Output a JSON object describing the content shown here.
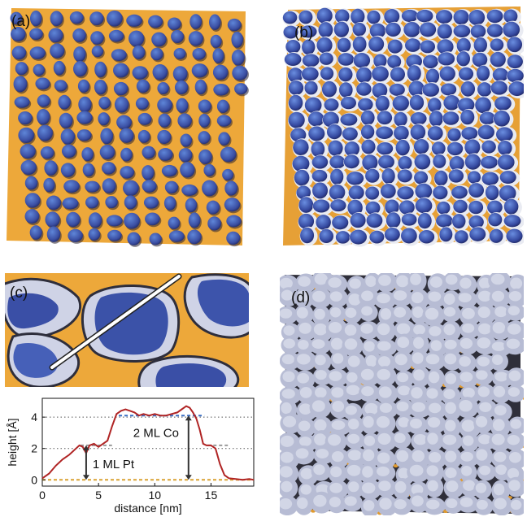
{
  "figure": {
    "panel_labels": {
      "a": "(a)",
      "b": "(b)",
      "c": "(c)",
      "d": "(d)"
    }
  },
  "chart_data": {
    "type": "line",
    "xlabel": "distance [nm]",
    "ylabel": "height [Å]",
    "xlim": [
      0,
      18.8
    ],
    "ylim": [
      -0.4,
      5.2
    ],
    "xticks": [
      0,
      5,
      10,
      15
    ],
    "yticks": [
      0,
      2,
      4
    ],
    "grid": "dotted horizontal at 2 and 4",
    "reference_lines": [
      {
        "y": 0.0,
        "color": "#d9a132",
        "x_range": [
          0,
          18.8
        ]
      },
      {
        "y": 2.2,
        "color": "#999999",
        "x_range": [
          3.4,
          6.2
        ]
      },
      {
        "y": 2.2,
        "color": "#999999",
        "x_range": [
          14.7,
          16.5
        ]
      },
      {
        "y": 4.1,
        "color": "#3a6fc4",
        "x_range": [
          6.8,
          14.4
        ]
      }
    ],
    "series": [
      {
        "color": "#b02424",
        "x": [
          0,
          0.6,
          1.2,
          1.8,
          2.4,
          3.0,
          3.3,
          3.6,
          3.9,
          4.2,
          4.6,
          5.0,
          5.4,
          5.8,
          6.2,
          6.6,
          7.0,
          7.4,
          7.8,
          8.2,
          8.6,
          9.0,
          9.5,
          10.0,
          10.5,
          11.0,
          11.5,
          12.0,
          12.4,
          12.8,
          13.1,
          13.4,
          13.7,
          14.0,
          14.3,
          14.6,
          15.0,
          15.4,
          15.8,
          16.2,
          16.6,
          17.2,
          17.8,
          18.4,
          18.8
        ],
        "y": [
          0.1,
          0.4,
          0.9,
          1.3,
          1.6,
          2.0,
          2.2,
          2.1,
          1.7,
          2.2,
          2.3,
          2.1,
          2.3,
          2.5,
          3.4,
          4.2,
          4.4,
          4.5,
          4.4,
          4.3,
          4.1,
          4.2,
          4.1,
          4.2,
          4.1,
          4.1,
          4.2,
          4.3,
          4.5,
          4.7,
          4.6,
          4.3,
          3.9,
          3.2,
          2.3,
          2.2,
          2.2,
          2.0,
          1.0,
          0.3,
          0.1,
          0.05,
          0.0,
          0.05,
          0.0
        ]
      }
    ],
    "annotations": [
      {
        "text": "1 ML Pt",
        "arrow_x": 3.9,
        "arrow_y": [
          0,
          2.2
        ]
      },
      {
        "text": "2 ML Co",
        "arrow_x": 13.0,
        "arrow_y": [
          0,
          4.1
        ]
      }
    ]
  }
}
